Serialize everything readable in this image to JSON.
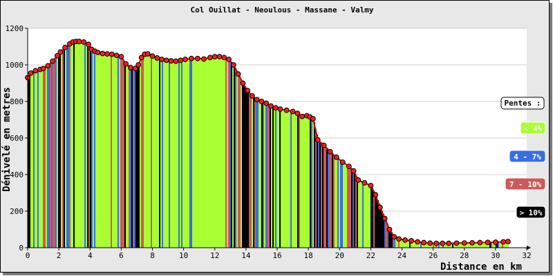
{
  "chart_data": {
    "type": "area",
    "title": "Col Ouillat - Neoulous - Massane - Valmy",
    "xlabel": "Distance en km",
    "ylabel": "Dénivelé en metres",
    "xlim": [
      0,
      32
    ],
    "ylim": [
      0,
      1200
    ],
    "xticks": [
      0,
      2,
      4,
      6,
      8,
      10,
      12,
      14,
      16,
      18,
      20,
      22,
      24,
      26,
      28,
      30,
      32
    ],
    "yticks": [
      0,
      200,
      400,
      600,
      800,
      1000,
      1200
    ],
    "grid": "horizontal",
    "legend": {
      "title": "Pentes :",
      "placement": "right",
      "items": [
        {
          "label": "< 4%",
          "color": "#aaff33",
          "text_color": "#ffffff"
        },
        {
          "label": "4 - 7%",
          "color": "#3a6ee0",
          "text_color": "#ffffff"
        },
        {
          "label": "7 - 10%",
          "color": "#cc5a5a",
          "text_color": "#ffffff"
        },
        {
          "label": "> 10%",
          "color": "#000000",
          "text_color": "#ffffff"
        }
      ]
    },
    "profile_color": "#cc0000",
    "marker_color": "#ee2222",
    "series": [
      {
        "x": [
          0.0,
          0.2,
          0.5,
          0.8,
          1.0,
          1.3,
          1.6,
          1.9,
          2.1,
          2.4,
          2.7,
          2.9,
          3.1,
          3.3,
          3.6,
          3.9,
          4.1,
          4.3,
          4.5,
          4.8,
          5.1,
          5.4,
          5.7,
          6.0,
          6.3,
          6.6,
          6.9,
          7.1,
          7.3,
          7.5,
          7.7,
          8.0,
          8.3,
          8.6,
          8.9,
          9.2,
          9.5,
          9.8,
          10.1,
          10.5,
          10.9,
          11.3,
          11.7,
          12.0,
          12.3,
          12.6,
          12.9,
          13.2,
          13.5,
          13.8,
          14.1,
          14.4,
          14.7,
          15.0,
          15.3,
          15.6,
          15.9,
          16.2,
          16.6,
          17.0,
          17.3,
          17.6,
          17.9,
          18.1,
          18.3,
          18.6,
          19.0,
          19.4,
          19.8,
          20.2,
          20.6,
          20.9,
          21.2,
          21.6,
          22.0,
          22.3,
          22.6,
          22.9,
          23.2,
          23.5,
          23.8,
          24.2,
          24.6,
          25.0,
          25.4,
          25.8,
          26.2,
          26.6,
          27.0,
          27.5,
          28.0,
          28.5,
          29.0,
          29.5,
          30.0,
          30.5,
          30.8
        ],
        "y": [
          930,
          955,
          968,
          975,
          980,
          995,
          1020,
          1050,
          1070,
          1095,
          1115,
          1125,
          1128,
          1128,
          1125,
          1112,
          1085,
          1075,
          1068,
          1062,
          1060,
          1058,
          1052,
          1045,
          1005,
          985,
          980,
          1000,
          1040,
          1058,
          1060,
          1048,
          1038,
          1030,
          1025,
          1022,
          1020,
          1025,
          1030,
          1035,
          1035,
          1032,
          1040,
          1045,
          1045,
          1040,
          1030,
          1000,
          950,
          900,
          860,
          830,
          810,
          800,
          790,
          775,
          765,
          758,
          752,
          745,
          735,
          718,
          722,
          715,
          705,
          590,
          560,
          525,
          495,
          468,
          445,
          420,
          370,
          355,
          340,
          290,
          220,
          160,
          100,
          60,
          48,
          42,
          38,
          32,
          28,
          25,
          24,
          24,
          24,
          25,
          26,
          27,
          28,
          29,
          30,
          32,
          34
        ]
      }
    ]
  }
}
